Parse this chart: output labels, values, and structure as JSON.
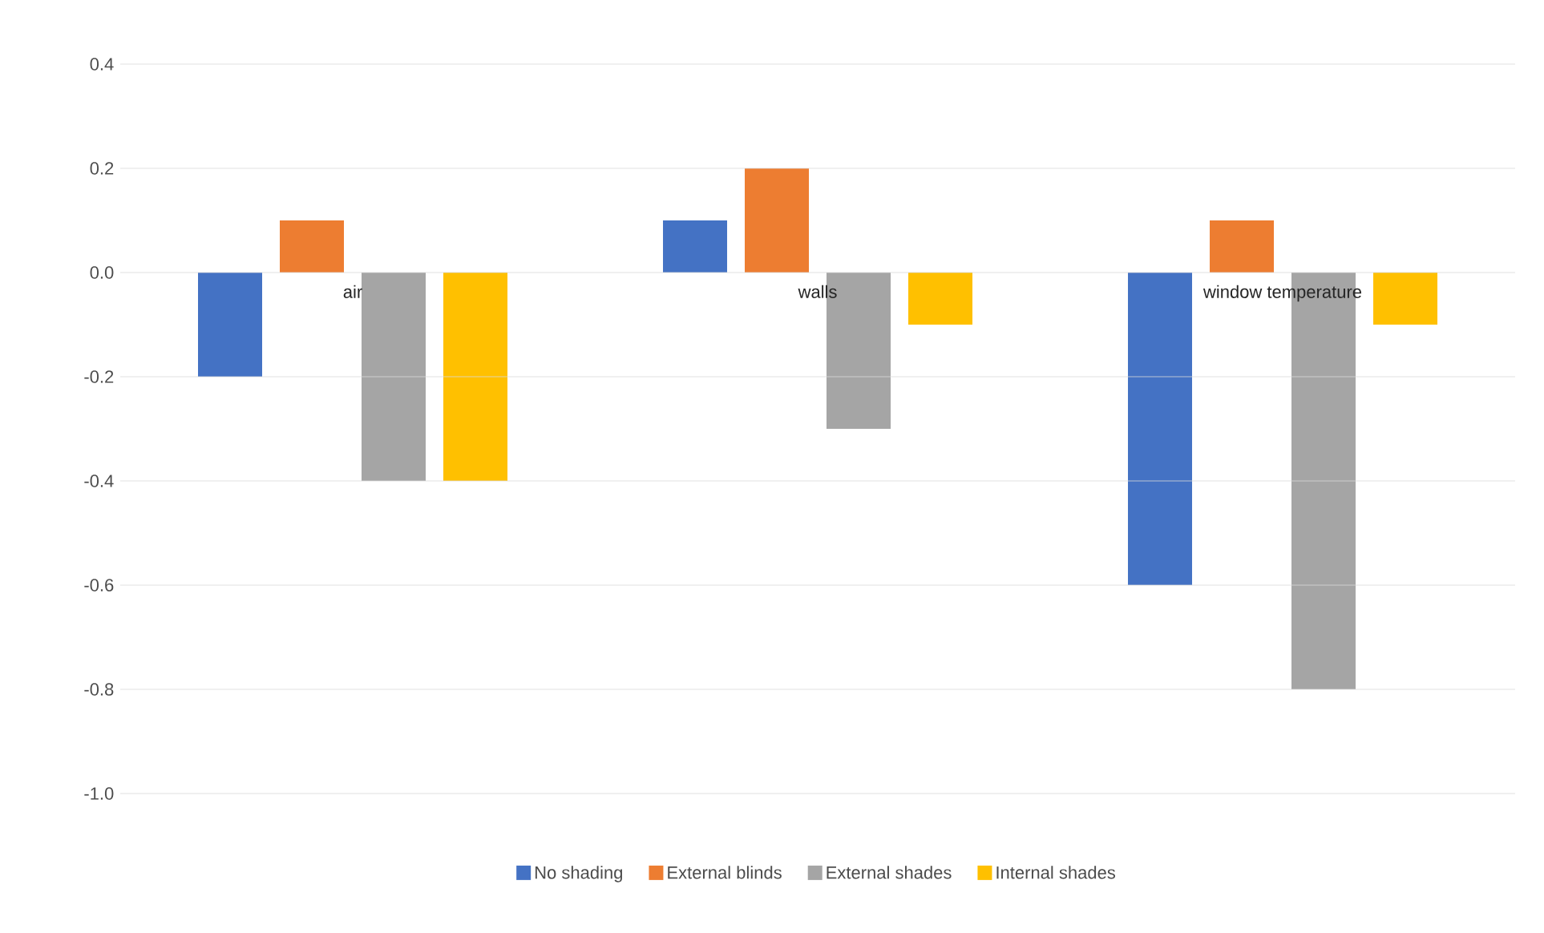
{
  "chart_data": {
    "type": "bar",
    "categories": [
      "air",
      "walls",
      "window temperature"
    ],
    "series": [
      {
        "name": "No shading",
        "color": "#4472c4",
        "values": [
          -0.2,
          0.1,
          -0.6
        ]
      },
      {
        "name": "External blinds",
        "color": "#ed7d31",
        "values": [
          0.1,
          0.2,
          0.1
        ]
      },
      {
        "name": "External shades",
        "color": "#a5a5a5",
        "values": [
          -0.4,
          -0.3,
          -0.8
        ]
      },
      {
        "name": "Internal shades",
        "color": "#ffc000",
        "values": [
          -0.4,
          -0.1,
          -0.1
        ]
      }
    ],
    "ylim": [
      -1.0,
      0.4
    ],
    "yticks": [
      {
        "value": -1.0,
        "label": "-1.0"
      },
      {
        "value": -0.8,
        "label": "-0.8"
      },
      {
        "value": -0.6,
        "label": "-0.6"
      },
      {
        "value": -0.4,
        "label": "-0.4"
      },
      {
        "value": -0.2,
        "label": "-0.2"
      },
      {
        "value": 0.0,
        "label": "0.0"
      },
      {
        "value": 0.2,
        "label": "0.2"
      },
      {
        "value": 0.4,
        "label": "0.4"
      }
    ],
    "grid": "y",
    "legend": "bottom"
  }
}
